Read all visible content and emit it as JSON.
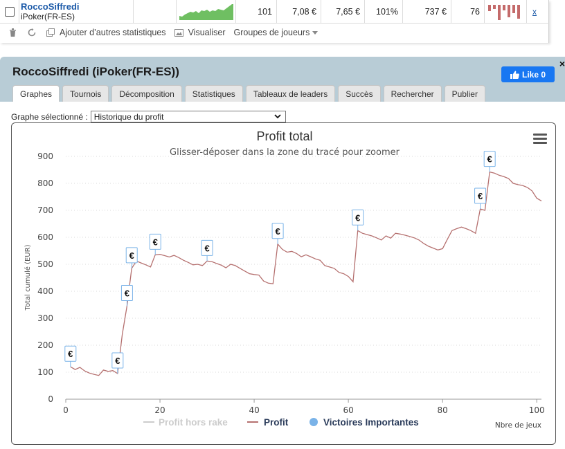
{
  "player_row": {
    "name": "RoccoSiffredi",
    "site": "iPoker(FR-ES)",
    "hands": "101",
    "stat1": "7,08 €",
    "stat2": "7,65 €",
    "stat3": "101%",
    "winnings": "737 €",
    "stat4": "76",
    "remove_label": "x"
  },
  "toolbar": {
    "add_stats": "Ajouter d’autres statistiques",
    "visualize": "Visualiser",
    "player_groups": "Groupes de joueurs"
  },
  "panel": {
    "title": "RoccoSiffredi (iPoker(FR-ES))",
    "close_label": "×",
    "like_label": "Like 0",
    "tabs": [
      {
        "label": "Graphes"
      },
      {
        "label": "Tournois"
      },
      {
        "label": "Décomposition"
      },
      {
        "label": "Statistiques"
      },
      {
        "label": "Tableaux de leaders"
      },
      {
        "label": "Succès"
      },
      {
        "label": "Rechercher"
      },
      {
        "label": "Publier"
      }
    ],
    "graph_select_label": "Graphe sélectionné :",
    "graph_select_value": "Historique du profit"
  },
  "colors": {
    "profit_line": "#b5706f",
    "rake_line": "#cccccc",
    "victory_marker": "#7ab3e8",
    "sparkline": "#6fbf62",
    "bars": "#c46a6a"
  },
  "chart_data": {
    "type": "line",
    "title": "Profit total",
    "subtitle": "Glisser-déposer dans la zone du tracé pour zoomer",
    "xlabel": "Nbre de jeux",
    "ylabel": "Total cumulé (EUR)",
    "xlim": [
      0,
      101
    ],
    "ylim": [
      0,
      900
    ],
    "x_ticks": [
      0,
      20,
      40,
      60,
      80,
      100
    ],
    "y_ticks": [
      0,
      100,
      200,
      300,
      400,
      500,
      600,
      700,
      800,
      900
    ],
    "grid": "horizontal-dotted",
    "legend_position": "bottom-center",
    "series": [
      {
        "name": "Profit",
        "x": [
          1,
          2,
          3,
          4,
          5,
          6,
          7,
          8,
          9,
          10,
          11,
          12,
          13,
          14,
          15,
          16,
          17,
          18,
          19,
          20,
          21,
          22,
          23,
          24,
          25,
          26,
          27,
          28,
          29,
          30,
          31,
          32,
          33,
          34,
          35,
          36,
          37,
          38,
          39,
          40,
          41,
          42,
          43,
          44,
          45,
          46,
          47,
          48,
          49,
          50,
          51,
          52,
          53,
          54,
          55,
          56,
          57,
          58,
          59,
          60,
          61,
          62,
          63,
          64,
          65,
          66,
          67,
          68,
          69,
          70,
          71,
          72,
          73,
          74,
          75,
          76,
          77,
          78,
          79,
          80,
          81,
          82,
          83,
          84,
          85,
          86,
          87,
          88,
          89,
          90,
          91,
          92,
          93,
          94,
          95,
          96,
          97,
          98,
          99,
          100,
          101
        ],
        "values": [
          120,
          110,
          118,
          105,
          97,
          92,
          88,
          108,
          103,
          106,
          95,
          240,
          345,
          485,
          512,
          505,
          498,
          490,
          535,
          537,
          532,
          527,
          533,
          525,
          515,
          507,
          498,
          500,
          495,
          512,
          510,
          503,
          497,
          487,
          500,
          495,
          485,
          475,
          465,
          462,
          460,
          438,
          430,
          428,
          575,
          555,
          545,
          548,
          540,
          528,
          535,
          528,
          520,
          515,
          495,
          490,
          485,
          470,
          465,
          455,
          435,
          625,
          615,
          610,
          605,
          598,
          590,
          605,
          597,
          615,
          612,
          608,
          603,
          598,
          590,
          577,
          567,
          560,
          553,
          558,
          592,
          625,
          632,
          638,
          632,
          625,
          615,
          705,
          700,
          842,
          838,
          830,
          825,
          818,
          800,
          795,
          792,
          785,
          772,
          745,
          735
        ]
      },
      {
        "name": "Profit hors rake",
        "x": [],
        "values": []
      }
    ],
    "victories": {
      "name": "Victoires Importantes",
      "marker_label": "€",
      "x": [
        1,
        11,
        13,
        14,
        19,
        30,
        45,
        62,
        88,
        90
      ]
    }
  }
}
